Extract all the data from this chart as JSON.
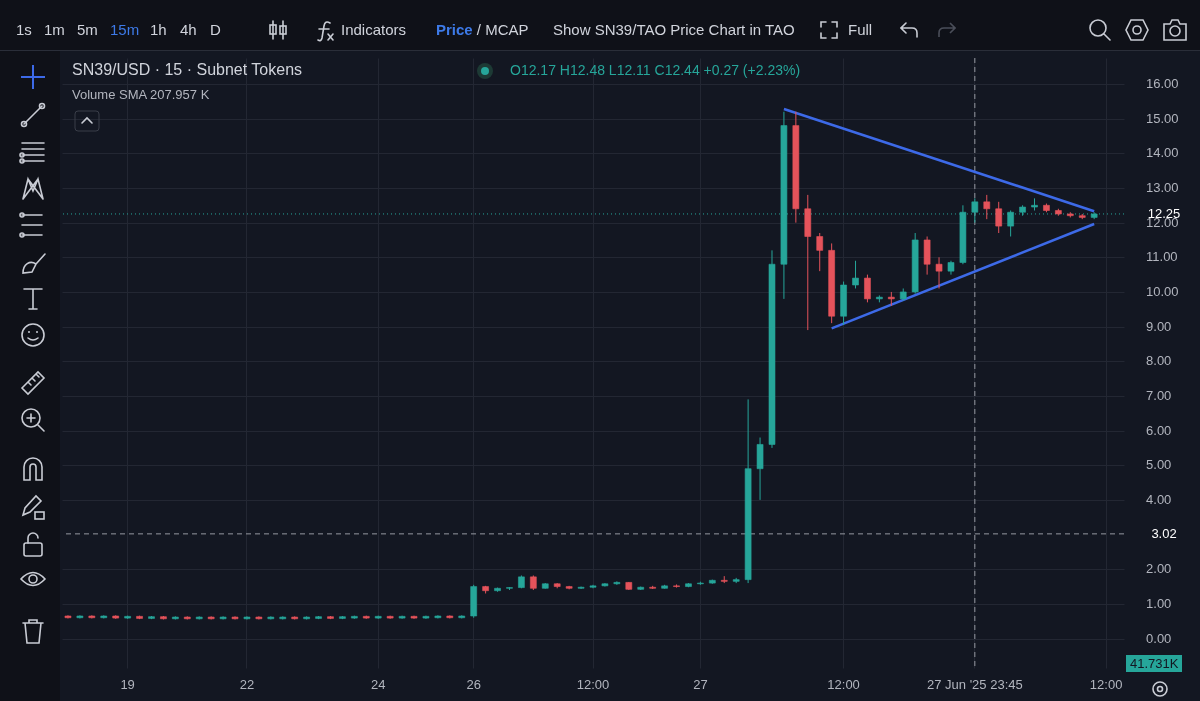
{
  "chart_data": {
    "type": "candlestick",
    "title": "SN39/USD · 15 · Subnet Tokens",
    "categories": [
      null,
      null,
      null,
      null,
      null,
      "19",
      null,
      null,
      null,
      null,
      null,
      null,
      null,
      null,
      null,
      "22",
      null,
      null,
      null,
      null,
      null,
      null,
      null,
      null,
      null,
      null,
      "24",
      null,
      null,
      null,
      null,
      null,
      null,
      null,
      "26",
      null,
      null,
      null,
      null,
      null,
      null,
      null,
      null,
      null,
      "12:00",
      null,
      null,
      null,
      null,
      null,
      null,
      null,
      null,
      "27",
      null,
      null,
      null,
      null,
      null,
      null,
      null,
      null,
      null,
      null,
      null,
      "12:00",
      null,
      null,
      null,
      null,
      null,
      null,
      null,
      null,
      null,
      null,
      "27 Jun '25 23:45",
      null,
      null,
      null,
      null,
      null,
      null,
      null,
      null,
      null,
      null,
      "12:00",
      null
    ],
    "ohlc": [
      [
        0.65,
        0.67,
        0.58,
        0.6
      ],
      [
        0.6,
        0.67,
        0.58,
        0.65
      ],
      [
        0.65,
        0.67,
        0.58,
        0.6
      ],
      [
        0.6,
        0.67,
        0.58,
        0.65
      ],
      [
        0.65,
        0.67,
        0.57,
        0.59
      ],
      [
        0.59,
        0.66,
        0.57,
        0.64
      ],
      [
        0.64,
        0.66,
        0.56,
        0.58
      ],
      [
        0.58,
        0.65,
        0.56,
        0.63
      ],
      [
        0.63,
        0.65,
        0.55,
        0.57
      ],
      [
        0.57,
        0.64,
        0.55,
        0.62
      ],
      [
        0.62,
        0.64,
        0.55,
        0.57
      ],
      [
        0.57,
        0.64,
        0.55,
        0.62
      ],
      [
        0.62,
        0.64,
        0.55,
        0.57
      ],
      [
        0.57,
        0.64,
        0.55,
        0.62
      ],
      [
        0.62,
        0.64,
        0.55,
        0.57
      ],
      [
        0.57,
        0.64,
        0.55,
        0.62
      ],
      [
        0.62,
        0.64,
        0.55,
        0.57
      ],
      [
        0.57,
        0.64,
        0.55,
        0.62
      ],
      [
        0.57,
        0.64,
        0.55,
        0.62
      ],
      [
        0.62,
        0.64,
        0.55,
        0.57
      ],
      [
        0.57,
        0.64,
        0.55,
        0.62
      ],
      [
        0.58,
        0.65,
        0.56,
        0.63
      ],
      [
        0.63,
        0.65,
        0.56,
        0.58
      ],
      [
        0.58,
        0.65,
        0.56,
        0.63
      ],
      [
        0.59,
        0.66,
        0.57,
        0.64
      ],
      [
        0.64,
        0.66,
        0.57,
        0.59
      ],
      [
        0.59,
        0.66,
        0.57,
        0.64
      ],
      [
        0.64,
        0.66,
        0.57,
        0.59
      ],
      [
        0.59,
        0.66,
        0.57,
        0.64
      ],
      [
        0.64,
        0.66,
        0.57,
        0.59
      ],
      [
        0.59,
        0.66,
        0.57,
        0.64
      ],
      [
        0.6,
        0.67,
        0.58,
        0.65
      ],
      [
        0.65,
        0.67,
        0.58,
        0.6
      ],
      [
        0.6,
        0.67,
        0.58,
        0.65
      ],
      [
        0.65,
        1.55,
        0.6,
        1.5
      ],
      [
        1.5,
        1.52,
        1.3,
        1.38
      ],
      [
        1.38,
        1.47,
        1.35,
        1.45
      ],
      [
        1.45,
        1.48,
        1.4,
        1.47
      ],
      [
        1.47,
        1.82,
        1.45,
        1.78
      ],
      [
        1.78,
        1.82,
        1.4,
        1.45
      ],
      [
        1.45,
        1.6,
        1.44,
        1.58
      ],
      [
        1.58,
        1.6,
        1.45,
        1.5
      ],
      [
        1.5,
        1.52,
        1.42,
        1.45
      ],
      [
        1.45,
        1.5,
        1.43,
        1.48
      ],
      [
        1.48,
        1.55,
        1.45,
        1.52
      ],
      [
        1.52,
        1.6,
        1.5,
        1.58
      ],
      [
        1.58,
        1.65,
        1.55,
        1.62
      ],
      [
        1.62,
        1.63,
        1.4,
        1.42
      ],
      [
        1.42,
        1.5,
        1.4,
        1.48
      ],
      [
        1.48,
        1.52,
        1.43,
        1.45
      ],
      [
        1.45,
        1.55,
        1.44,
        1.52
      ],
      [
        1.52,
        1.56,
        1.47,
        1.5
      ],
      [
        1.5,
        1.6,
        1.48,
        1.58
      ],
      [
        1.58,
        1.64,
        1.55,
        1.6
      ],
      [
        1.6,
        1.7,
        1.58,
        1.68
      ],
      [
        1.68,
        1.8,
        1.6,
        1.65
      ],
      [
        1.65,
        1.75,
        1.6,
        1.7
      ],
      [
        1.7,
        6.9,
        1.6,
        4.9
      ],
      [
        4.9,
        5.8,
        4.0,
        5.6
      ],
      [
        5.6,
        11.2,
        5.5,
        10.8
      ],
      [
        10.8,
        15.2,
        9.8,
        14.8
      ],
      [
        14.8,
        15.2,
        12.0,
        12.4
      ],
      [
        12.4,
        12.8,
        8.9,
        11.6
      ],
      [
        11.6,
        11.7,
        10.6,
        11.2
      ],
      [
        11.2,
        11.4,
        9.1,
        9.3
      ],
      [
        9.3,
        10.3,
        9.05,
        10.2
      ],
      [
        10.2,
        10.9,
        10.1,
        10.4
      ],
      [
        10.4,
        10.5,
        9.7,
        9.8
      ],
      [
        9.8,
        9.9,
        9.7,
        9.85
      ],
      [
        9.85,
        10.0,
        9.6,
        9.8
      ],
      [
        9.8,
        10.1,
        9.75,
        10.0
      ],
      [
        10.0,
        11.7,
        9.95,
        11.5
      ],
      [
        11.5,
        11.6,
        10.5,
        10.8
      ],
      [
        10.8,
        11.0,
        10.1,
        10.6
      ],
      [
        10.6,
        10.9,
        10.5,
        10.85
      ],
      [
        10.85,
        12.5,
        10.8,
        12.3
      ],
      [
        12.3,
        12.7,
        12.0,
        12.6
      ],
      [
        12.6,
        12.8,
        12.1,
        12.4
      ],
      [
        12.4,
        12.6,
        11.7,
        11.9
      ],
      [
        11.9,
        12.35,
        11.6,
        12.3
      ],
      [
        12.3,
        12.5,
        12.2,
        12.45
      ],
      [
        12.45,
        12.7,
        12.35,
        12.5
      ],
      [
        12.5,
        12.55,
        12.3,
        12.35
      ],
      [
        12.35,
        12.4,
        12.2,
        12.25
      ],
      [
        12.25,
        12.3,
        12.15,
        12.2
      ],
      [
        12.2,
        12.25,
        12.1,
        12.15
      ],
      [
        12.15,
        12.3,
        12.1,
        12.25
      ],
      null,
      null
    ],
    "colors": [
      "#e5535b",
      "#26a69a",
      "#e5535b",
      "#26a69a",
      "#e5535b",
      "#26a69a",
      "#e5535b",
      "#26a69a",
      "#e5535b",
      "#26a69a",
      "#e5535b",
      "#26a69a",
      "#e5535b",
      "#26a69a",
      "#e5535b",
      "#26a69a",
      "#e5535b",
      "#26a69a",
      "#26a69a",
      "#e5535b",
      "#26a69a",
      "#26a69a",
      "#e5535b",
      "#26a69a",
      "#26a69a",
      "#e5535b",
      "#26a69a",
      "#e5535b",
      "#26a69a",
      "#e5535b",
      "#26a69a",
      "#26a69a",
      "#e5535b",
      "#26a69a",
      "#26a69a",
      "#e5535b",
      "#26a69a",
      "#26a69a",
      "#26a69a",
      "#e5535b",
      "#26a69a",
      "#e5535b",
      "#e5535b",
      "#26a69a",
      "#26a69a",
      "#26a69a",
      "#26a69a",
      "#e5535b",
      "#26a69a",
      "#e5535b",
      "#26a69a",
      "#e5535b",
      "#26a69a",
      "#26a69a",
      "#26a69a",
      "#e5535b",
      "#26a69a",
      "#26a69a",
      "#26a69a",
      "#26a69a",
      "#26a69a",
      "#e5535b",
      "#e5535b",
      "#e5535b",
      "#e5535b",
      "#26a69a",
      "#26a69a",
      "#e5535b",
      "#26a69a",
      "#e5535b",
      "#26a69a",
      "#26a69a",
      "#e5535b",
      "#e5535b",
      "#26a69a",
      "#26a69a",
      "#26a69a",
      "#e5535b",
      "#e5535b",
      "#26a69a",
      "#26a69a",
      "#26a69a",
      "#e5535b",
      "#e5535b",
      "#e5535b",
      "#e5535b",
      "#26a69a",
      null,
      null
    ],
    "series": [
      {
        "type": "line",
        "color": "#3d6ae8",
        "values": [
          null,
          null,
          null,
          null,
          null,
          null,
          null,
          null,
          null,
          null,
          null,
          null,
          null,
          null,
          null,
          null,
          null,
          null,
          null,
          null,
          null,
          null,
          null,
          null,
          null,
          null,
          null,
          null,
          null,
          null,
          null,
          null,
          null,
          null,
          null,
          null,
          null,
          null,
          null,
          null,
          null,
          null,
          null,
          null,
          null,
          null,
          null,
          null,
          null,
          null,
          null,
          null,
          null,
          null,
          null,
          null,
          null,
          null,
          null,
          null,
          15.28,
          null,
          null,
          null,
          null,
          null,
          null,
          null,
          null,
          null,
          null,
          null,
          null,
          null,
          null,
          null,
          null,
          null,
          null,
          null,
          null,
          null,
          null,
          null,
          null,
          null,
          12.33,
          null,
          null
        ]
      },
      {
        "type": "line",
        "color": "#3d6ae8",
        "values": [
          null,
          null,
          null,
          null,
          null,
          null,
          null,
          null,
          null,
          null,
          null,
          null,
          null,
          null,
          null,
          null,
          null,
          null,
          null,
          null,
          null,
          null,
          null,
          null,
          null,
          null,
          null,
          null,
          null,
          null,
          null,
          null,
          null,
          null,
          null,
          null,
          null,
          null,
          null,
          null,
          null,
          null,
          null,
          null,
          null,
          null,
          null,
          null,
          null,
          null,
          null,
          null,
          null,
          null,
          null,
          null,
          null,
          null,
          null,
          null,
          null,
          null,
          null,
          null,
          8.95,
          null,
          null,
          null,
          null,
          null,
          null,
          null,
          null,
          null,
          null,
          null,
          null,
          null,
          null,
          null,
          null,
          null,
          null,
          null,
          null,
          null,
          11.96,
          null,
          null
        ]
      }
    ],
    "ylim": [
      -0.85,
      16.75
    ],
    "yticks": [
      {
        "value": 0,
        "label": "0.00"
      },
      {
        "value": 1,
        "label": "1.00"
      },
      {
        "value": 2,
        "label": "2.00"
      },
      {
        "value": 4,
        "label": "4.00"
      },
      {
        "value": 5,
        "label": "5.00"
      },
      {
        "value": 6,
        "label": "6.00"
      },
      {
        "value": 7,
        "label": "7.00"
      },
      {
        "value": 8,
        "label": "8.00"
      },
      {
        "value": 9,
        "label": "9.00"
      },
      {
        "value": 10,
        "label": "10.00"
      },
      {
        "value": 11,
        "label": "11.00"
      },
      {
        "value": 12,
        "label": "12.00"
      },
      {
        "value": 13,
        "label": "13.00"
      },
      {
        "value": 14,
        "label": "14.00"
      },
      {
        "value": 15,
        "label": "15.00"
      },
      {
        "value": 16,
        "label": "16.00"
      }
    ],
    "ref_lines": [
      {
        "axis": "y",
        "value": 12.25,
        "label": "12.25",
        "color": "#26a69a",
        "line_style": "dotted"
      },
      {
        "axis": "y",
        "value": 3.02,
        "label": "3.02",
        "color": "#9598a1",
        "line_style": "dashed"
      },
      {
        "axis": "x",
        "value": "27 Jun '25 23:45",
        "color": "#9598a1",
        "line_style": "dashed"
      }
    ],
    "grid": true,
    "annotations": [
      "O12.17 H12.48 L12.11 C12.44 +0.27 (+2.23%)",
      "Volume SMA 207.957 K",
      "41.731K",
      "1s",
      "1m",
      "5m",
      "15m",
      "1h",
      "4h",
      "D",
      "Indicators",
      "Price / MCAP",
      "Show SN39/TAO Price Chart in TAO",
      "Full"
    ]
  }
}
